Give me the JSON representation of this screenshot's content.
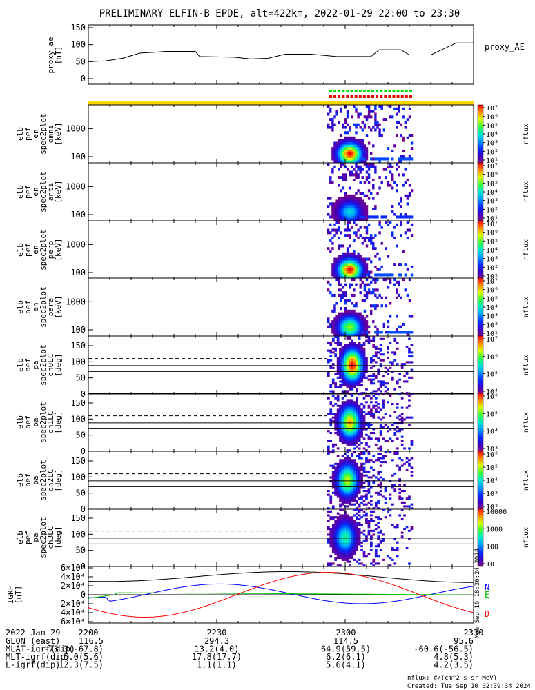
{
  "title": "PRELIMINARY ELFIN-B EPDE, alt=422km, 2022-01-29 22:00 to 23:30",
  "colors": {
    "yellow_bar": "#ffd700",
    "green_dots": "#00e000",
    "red_dots": "#e00000",
    "igrf_n": "#0000ff",
    "igrf_e": "#00c000",
    "igrf_d": "#ff0000",
    "igrf_total": "#000000"
  },
  "icons": [
    "colorbar-gradient"
  ],
  "chart_data": [
    {
      "type": "line",
      "id": "proxy_ae",
      "ylabel_lines": [
        "proxy_ae",
        "[nT]"
      ],
      "legend": "proxy_AE",
      "ylim": [
        0,
        150
      ],
      "yticks": [
        "0",
        "50",
        "100",
        "150"
      ],
      "x": [
        0,
        4,
        8,
        12,
        16,
        18,
        25,
        26,
        34,
        38,
        42,
        46,
        52,
        58,
        66,
        68,
        73,
        75,
        80,
        86,
        90
      ],
      "y": [
        50,
        52,
        60,
        75,
        78,
        80,
        80,
        65,
        63,
        58,
        60,
        72,
        72,
        65,
        65,
        85,
        85,
        70,
        70,
        105,
        105
      ]
    },
    {
      "type": "heatmap",
      "id": "omni",
      "ylabel_lines": [
        "elb",
        "pef",
        "en",
        "spec2plot",
        "omni",
        "[keV]"
      ],
      "yticks": [
        "100",
        "1000"
      ],
      "ylog": true,
      "ylim_kev": [
        60,
        7000
      ],
      "cbar_label": "nflux",
      "cbar_ticks": [
        "10¹",
        "10²",
        "10³",
        "10⁴",
        "10⁵",
        "10⁶",
        "10⁷"
      ],
      "cbar_log_range": [
        1,
        7
      ],
      "pattern": "energy"
    },
    {
      "type": "heatmap",
      "id": "anti",
      "ylabel_lines": [
        "elb",
        "pef",
        "en",
        "spec2plot",
        "anti",
        "[keV]"
      ],
      "yticks": [
        "100",
        "1000"
      ],
      "ylog": true,
      "ylim_kev": [
        60,
        7000
      ],
      "cbar_label": "nflux",
      "cbar_ticks": [
        "10¹",
        "10²",
        "10³",
        "10⁴",
        "10⁵",
        "10⁶",
        "10⁷"
      ],
      "cbar_log_range": [
        1,
        7
      ],
      "pattern": "energy"
    },
    {
      "type": "heatmap",
      "id": "perp",
      "ylabel_lines": [
        "elb",
        "pef",
        "en",
        "spec2plot",
        "perp",
        "[keV]"
      ],
      "yticks": [
        "100",
        "1000"
      ],
      "ylog": true,
      "ylim_kev": [
        60,
        7000
      ],
      "cbar_label": "nflux",
      "cbar_ticks": [
        "10¹",
        "10²",
        "10³",
        "10⁴",
        "10⁵",
        "10⁶",
        "10⁷"
      ],
      "cbar_log_range": [
        1,
        7
      ],
      "pattern": "energy"
    },
    {
      "type": "heatmap",
      "id": "para",
      "ylabel_lines": [
        "elb",
        "pef",
        "en",
        "spec2plot",
        "para",
        "[keV]"
      ],
      "yticks": [
        "100",
        "1000"
      ],
      "ylog": true,
      "ylim_kev": [
        60,
        7000
      ],
      "cbar_label": "nflux",
      "cbar_ticks": [
        "10¹",
        "10²",
        "10³",
        "10⁴",
        "10⁵",
        "10⁶",
        "10⁷"
      ],
      "cbar_log_range": [
        1,
        7
      ],
      "pattern": "energy"
    },
    {
      "type": "heatmap",
      "id": "ch0LC",
      "ylabel_lines": [
        "elb",
        "pef",
        "pa",
        "spec2plot",
        "ch0LC",
        "[deg]"
      ],
      "yticks": [
        "0",
        "50",
        "100",
        "150"
      ],
      "ylim": [
        0,
        180
      ],
      "cbar_label": "nflux",
      "cbar_ticks": [
        "10⁴",
        "10⁵",
        "10⁶",
        "10⁷"
      ],
      "cbar_log_range": [
        3.3,
        7
      ],
      "pattern": "pitch"
    },
    {
      "type": "heatmap",
      "id": "ch1LC",
      "ylabel_lines": [
        "elb",
        "pef",
        "pa",
        "spec2plot",
        "ch1LC",
        "[deg]"
      ],
      "yticks": [
        "0",
        "50",
        "100",
        "150"
      ],
      "ylim": [
        0,
        180
      ],
      "cbar_label": "nflux",
      "cbar_ticks": [
        "10³",
        "10⁴",
        "10⁵",
        "10⁶"
      ],
      "cbar_log_range": [
        2.8,
        6.6
      ],
      "pattern": "pitch"
    },
    {
      "type": "heatmap",
      "id": "ch2LC",
      "ylabel_lines": [
        "elb",
        "pef",
        "pa",
        "spec2plot",
        "ch2LC",
        "[deg]"
      ],
      "yticks": [
        "0",
        "50",
        "100",
        "150"
      ],
      "ylim": [
        0,
        180
      ],
      "cbar_label": "nflux",
      "cbar_ticks": [
        "10²",
        "10³",
        "10⁴",
        "10⁵",
        "10⁶"
      ],
      "cbar_log_range": [
        1.8,
        6.4
      ],
      "pattern": "pitch"
    },
    {
      "type": "heatmap",
      "id": "ch3LC",
      "ylabel_lines": [
        "elb",
        "pef",
        "pa",
        "spec2plot",
        "ch3LC",
        "[deg]"
      ],
      "yticks": [
        "0",
        "50",
        "100",
        "150"
      ],
      "ylim": [
        0,
        180
      ],
      "cbar_label": "nflux",
      "cbar_ticks": [
        "10",
        "100",
        "1000",
        "10000"
      ],
      "cbar_log_range": [
        1,
        4.3
      ],
      "pattern": "pitch"
    },
    {
      "type": "line",
      "id": "igrf",
      "ylabel_lines": [
        "IGRF",
        "[nT]"
      ],
      "ylim": [
        -60000,
        60000
      ],
      "yticks": [
        "-6×10⁴",
        "-4×10⁴",
        "-2×10⁴",
        "0",
        "2×10⁴",
        "4×10⁴",
        "6×10⁴"
      ],
      "labels": [
        "N",
        "E",
        "D"
      ],
      "side_label": "Mon Sep 16 18:36:24 2024"
    }
  ],
  "time_axis": {
    "label_title": "2022 Jan 29",
    "ticks": [
      "2200",
      "2230",
      "2300",
      "2330"
    ],
    "rows": [
      {
        "name": "GLON (east)",
        "values": [
          "116.5",
          "294.3",
          "114.5",
          "95.6"
        ]
      },
      {
        "name": "MLAT-igrf(dip)",
        "values": [
          "-73.3(-67.8)",
          "13.2(4.0)",
          "64.9(59.5)",
          "-60.6(-56.5)"
        ]
      },
      {
        "name": "MLT-igrf(dip)",
        "values": [
          "5.0(5.6)",
          "17.8(17.7)",
          "6.2(6.1)",
          "4.8(5.3)"
        ]
      },
      {
        "name": "L-igrf(dip)",
        "values": [
          "12.3(7.5)",
          "1.1(1.1)",
          "5.6(4.1)",
          "4.2(3.5)"
        ]
      }
    ]
  },
  "footnote_units": "nflux: #/(cm^2 s sr MeV)",
  "footnote_created": "Created: Tue Sep 10 02:39:34 2024"
}
